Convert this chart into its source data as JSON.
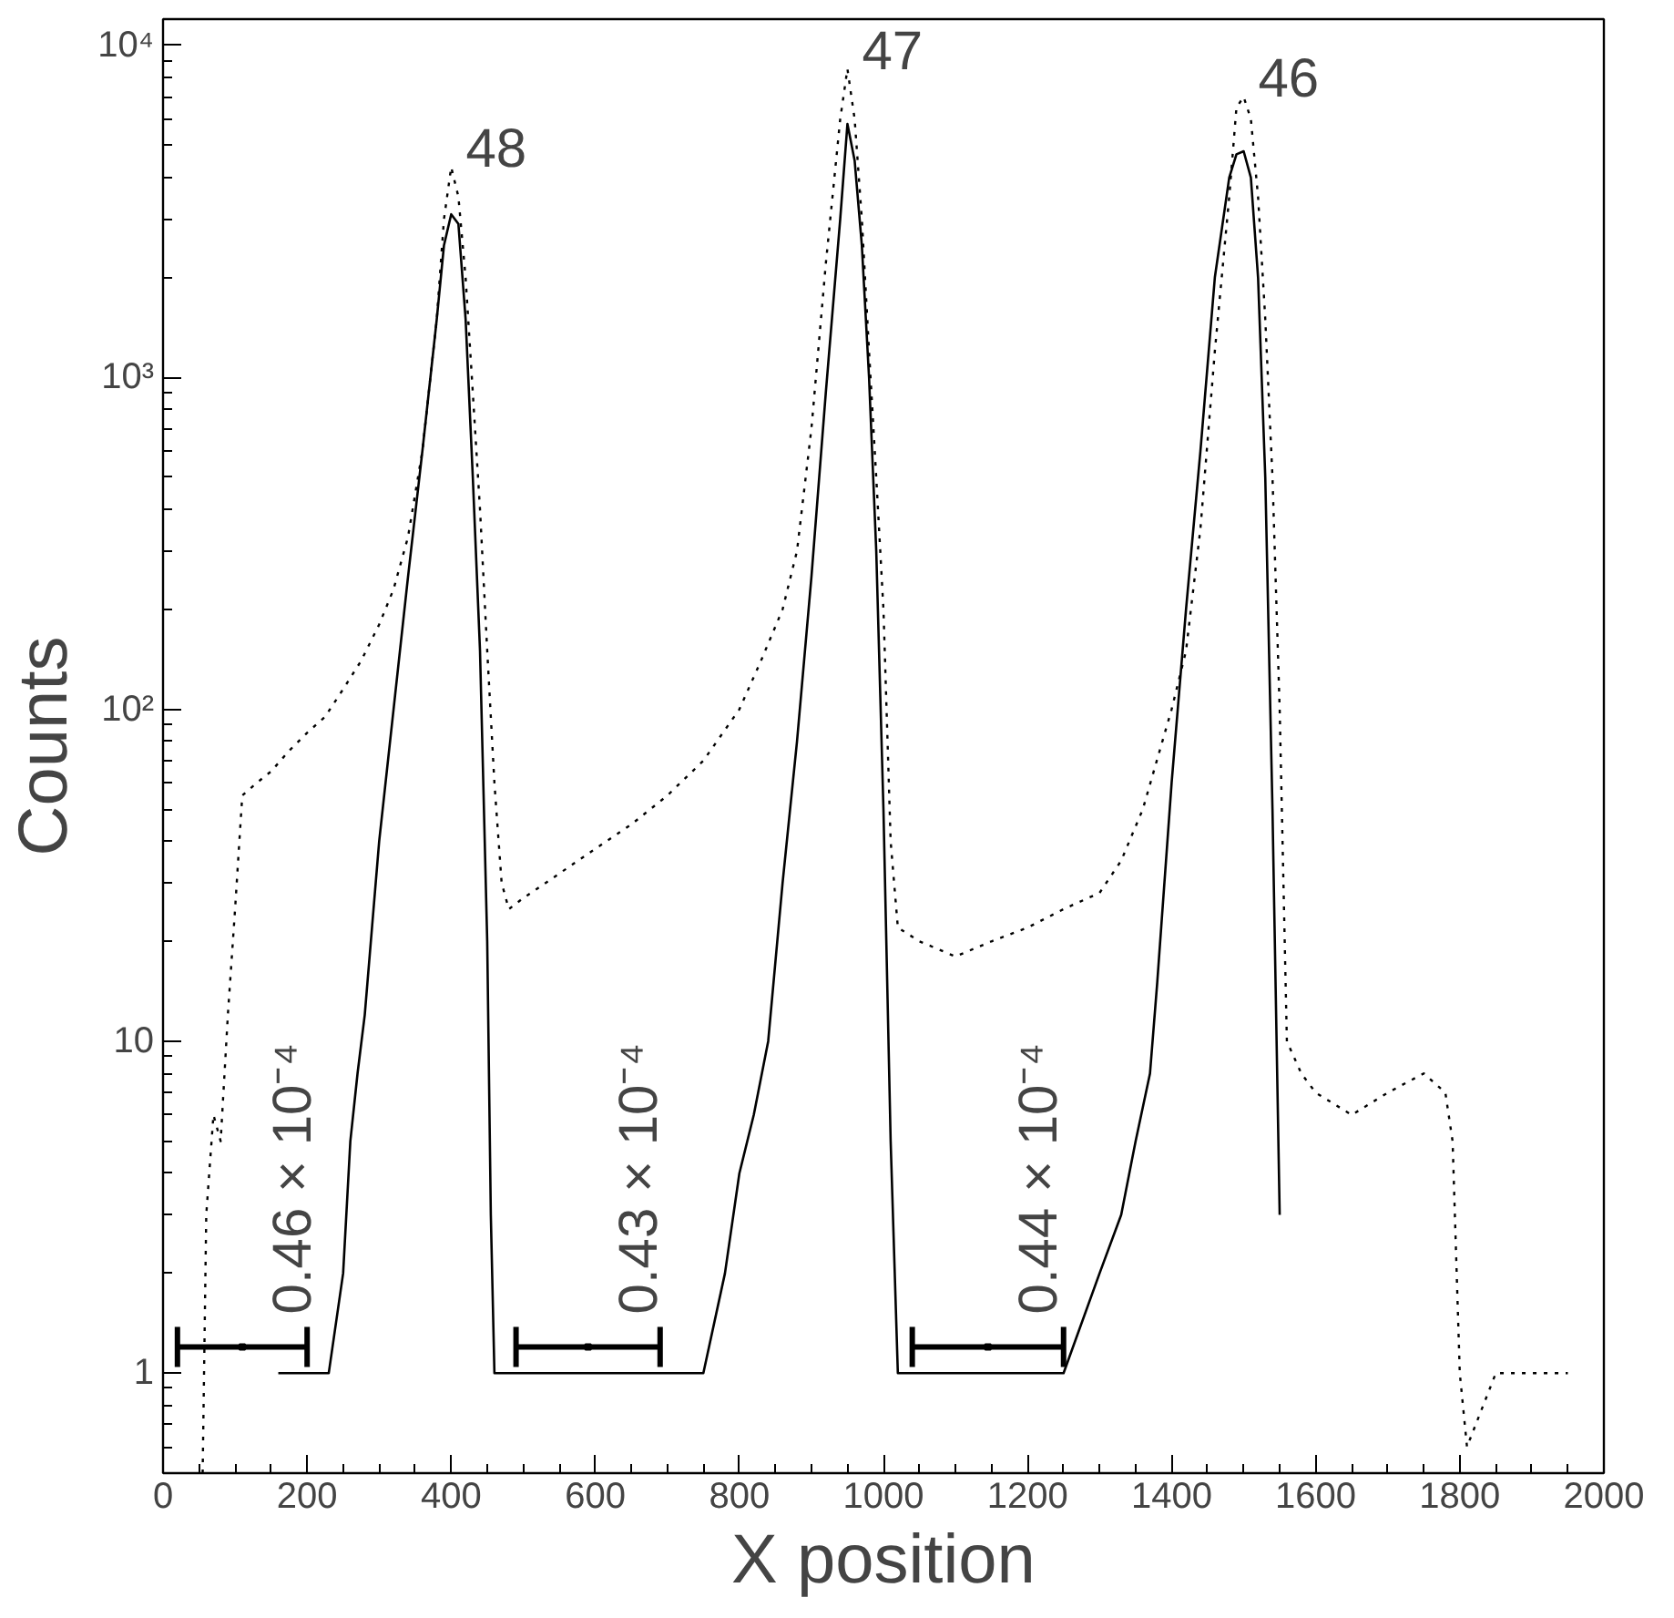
{
  "chart_data": {
    "type": "line",
    "xlabel": "X position",
    "ylabel": "Counts",
    "log": "y",
    "grid": false,
    "marker": "none",
    "xlim": [
      0,
      2000
    ],
    "xticks": [
      0,
      200,
      400,
      600,
      800,
      1000,
      1200,
      1400,
      1600,
      1800,
      2000
    ],
    "ylim": [
      0.5,
      12000
    ],
    "yticks": [
      1,
      10,
      {
        "value": 100,
        "label": "10²"
      },
      {
        "value": 1000,
        "label": "10³"
      },
      {
        "value": 10000,
        "label": "10⁴"
      }
    ],
    "series": [
      {
        "color": "#000000",
        "line_style": "dotted",
        "x": [
          55,
          60,
          70,
          80,
          90,
          100,
          110,
          130,
          150,
          175,
          200,
          225,
          250,
          275,
          300,
          320,
          340,
          360,
          380,
          390,
          400,
          410,
          420,
          430,
          440,
          450,
          460,
          470,
          480,
          500,
          550,
          600,
          650,
          700,
          750,
          800,
          830,
          860,
          880,
          900,
          920,
          940,
          950,
          960,
          970,
          980,
          990,
          1000,
          1010,
          1020,
          1050,
          1100,
          1150,
          1200,
          1250,
          1300,
          1330,
          1360,
          1400,
          1420,
          1440,
          1460,
          1480,
          1490,
          1500,
          1510,
          1520,
          1530,
          1540,
          1550,
          1560,
          1580,
          1600,
          1650,
          1700,
          1750,
          1780,
          1790,
          1800,
          1810,
          1850,
          1900,
          1950
        ],
        "values": [
          0.5,
          3,
          6,
          5,
          12,
          25,
          55,
          60,
          65,
          75,
          85,
          95,
          115,
          140,
          180,
          230,
          330,
          600,
          1500,
          3000,
          4300,
          3500,
          2000,
          900,
          400,
          150,
          60,
          30,
          25,
          27,
          32,
          38,
          45,
          55,
          70,
          100,
          140,
          200,
          300,
          700,
          2200,
          6000,
          8500,
          6000,
          3000,
          1200,
          500,
          200,
          40,
          22,
          20,
          18,
          20,
          22,
          25,
          28,
          35,
          50,
          100,
          150,
          350,
          1200,
          3500,
          6500,
          7000,
          6000,
          3500,
          1500,
          500,
          100,
          10,
          8,
          7,
          6,
          7,
          8,
          7,
          5,
          1,
          0.6,
          1,
          1,
          1
        ]
      },
      {
        "color": "#000000",
        "line_style": "solid",
        "x": [
          160,
          200,
          230,
          250,
          260,
          270,
          280,
          300,
          320,
          340,
          360,
          380,
          390,
          400,
          410,
          420,
          430,
          440,
          450,
          455,
          460,
          700,
          750,
          780,
          800,
          820,
          840,
          860,
          880,
          900,
          920,
          940,
          950,
          960,
          970,
          980,
          990,
          1000,
          1010,
          1020,
          1250,
          1300,
          1330,
          1350,
          1370,
          1380,
          1400,
          1420,
          1440,
          1460,
          1480,
          1490,
          1500,
          1510,
          1520,
          1530,
          1540,
          1550
        ],
        "values": [
          1,
          1,
          1,
          2,
          5,
          8,
          12,
          40,
          100,
          250,
          600,
          1500,
          2500,
          3100,
          2900,
          1500,
          500,
          150,
          20,
          3,
          1,
          1,
          1,
          2,
          4,
          6,
          10,
          30,
          80,
          250,
          900,
          3000,
          5800,
          4500,
          2500,
          1000,
          300,
          50,
          5,
          1,
          1,
          2,
          3,
          5,
          8,
          15,
          60,
          200,
          600,
          2000,
          4000,
          4700,
          4800,
          4000,
          2000,
          500,
          50,
          3
        ]
      },
      {
        "type": "scatter",
        "color": "#000000",
        "marker": "square",
        "x": [
          110,
          590,
          1145
        ],
        "values": [
          1.2,
          1.2,
          1.2
        ],
        "xerrors": [
          90,
          100,
          105
        ]
      }
    ],
    "annotations": [
      {
        "text": "48",
        "x": 400,
        "y": 4300
      },
      {
        "text": "47",
        "x": 950,
        "y": 8500
      },
      {
        "text": "46",
        "x": 1500,
        "y": 7000
      },
      {
        "text": "0.46 × 10⁻⁴",
        "x": 110,
        "y": 1.2
      },
      {
        "text": "0.43 × 10⁻⁴",
        "x": 590,
        "y": 1.2
      },
      {
        "text": "0.44 × 10⁻⁴",
        "x": 1145,
        "y": 1.2
      }
    ]
  }
}
